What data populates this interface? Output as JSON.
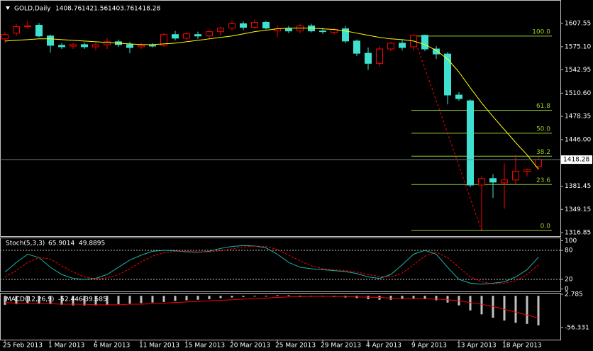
{
  "chart_data": [
    {
      "type": "candlestick",
      "title": "GOLD,Daily",
      "categories": [
        "25 Feb 2013",
        null,
        null,
        null,
        "1 Mar 2013",
        null,
        null,
        null,
        "6 Mar 2013",
        null,
        null,
        null,
        "11 Mar 2013",
        null,
        null,
        null,
        "15 Mar 2013",
        null,
        null,
        null,
        "20 Mar 2013",
        null,
        null,
        null,
        "25 Mar 2013",
        null,
        null,
        null,
        "29 Mar 2013",
        null,
        null,
        null,
        "4 Apr 2013",
        null,
        null,
        null,
        "9 Apr 2013",
        null,
        null,
        null,
        "13 Apr 2013",
        null,
        null,
        null,
        "18 Apr 2013",
        null,
        null,
        null
      ],
      "open": [
        1586,
        1594,
        1603,
        1605,
        1590,
        1577,
        1576,
        1578,
        1575,
        1578,
        1582,
        1578,
        1575,
        1577,
        1577,
        1592,
        1587,
        1592,
        1590,
        1596,
        1601,
        1607,
        1602,
        1609,
        1597,
        1600,
        1597,
        1604,
        1597,
        1595,
        1600,
        1583,
        1566,
        1552,
        1572,
        1580,
        1575,
        1591,
        1572,
        1565,
        1508,
        1500,
        1383,
        1392,
        1386,
        1390,
        1402,
        1408.76
      ],
      "high": [
        1596,
        1607,
        1611,
        1608,
        1592,
        1580,
        1580,
        1581,
        1581,
        1587,
        1585,
        1582,
        1580,
        1580,
        1594,
        1597,
        1595,
        1596,
        1598,
        1603,
        1611,
        1610,
        1613,
        1611,
        1605,
        1604,
        1607,
        1607,
        1601,
        1601,
        1604,
        1585,
        1574,
        1576,
        1582,
        1585,
        1593,
        1592,
        1576,
        1568,
        1512,
        1502,
        1395,
        1398,
        1413,
        1425,
        1406,
        1421.56
      ],
      "low": [
        1580,
        1590,
        1600,
        1588,
        1567,
        1572,
        1572,
        1572,
        1570,
        1572,
        1575,
        1566,
        1572,
        1574,
        1575,
        1584,
        1584,
        1586,
        1586,
        1590,
        1598,
        1598,
        1600,
        1599,
        1588,
        1594,
        1594,
        1595,
        1593,
        1592,
        1580,
        1562,
        1543,
        1548,
        1569,
        1570,
        1570,
        1569,
        1558,
        1495,
        1500,
        1380,
        1321,
        1365,
        1350,
        1385,
        1395,
        1403.76
      ],
      "close": [
        1592,
        1603,
        1604,
        1590,
        1577,
        1575,
        1578,
        1575,
        1578,
        1582,
        1578,
        1574,
        1577,
        1576,
        1592,
        1587,
        1593,
        1590,
        1596,
        1601,
        1607,
        1602,
        1609,
        1601,
        1600,
        1597,
        1604,
        1597,
        1596,
        1599,
        1583,
        1566,
        1552,
        1572,
        1580,
        1574,
        1591,
        1572,
        1565,
        1508,
        1503,
        1383,
        1392,
        1387,
        1390,
        1402,
        1404,
        1418.28
      ],
      "up_color": "#ff0000",
      "down_color": "#40e0d0",
      "series": [
        {
          "color": "#ffff00",
          "values": [
            1583,
            1584,
            1585,
            1586,
            1586,
            1585,
            1584,
            1583,
            1582,
            1581,
            1580,
            1579,
            1578,
            1578,
            1579,
            1580,
            1582,
            1584,
            1586,
            1588,
            1590,
            1593,
            1596,
            1598,
            1600,
            1601,
            1601,
            1601,
            1600,
            1599,
            1597,
            1594,
            1591,
            1588,
            1586,
            1585,
            1583,
            1578,
            1570,
            1558,
            1540,
            1518,
            1497,
            1478,
            1460,
            1442,
            1425,
            1405
          ]
        }
      ],
      "fibo": {
        "color": "#9acd32",
        "levels": [
          {
            "label": "100.0",
            "value": 1589.9
          },
          {
            "label": "61.8",
            "value": 1486.7
          },
          {
            "label": "50.0",
            "value": 1454.9
          },
          {
            "label": "38.2",
            "value": 1423.0
          },
          {
            "label": "23.6",
            "value": 1383.6
          },
          {
            "label": "0.0",
            "value": 1319.8
          }
        ]
      },
      "ylim": [
        1312,
        1639
      ],
      "yticks": [
        1607.55,
        {
          "value": 1575.1,
          "label": "1575.10"
        },
        1542.95,
        {
          "value": 1510.6,
          "label": "1510.60"
        },
        1478.35,
        {
          "value": 1446,
          "label": "1446.00"
        },
        1381.45,
        1349.15,
        1316.85
      ]
    },
    {
      "type": "line",
      "title": "Stoch(5,3,3)",
      "series": [
        {
          "color": "#20b2aa",
          "values": [
            35,
            55,
            72,
            65,
            45,
            30,
            22,
            20,
            22,
            30,
            45,
            60,
            70,
            78,
            80,
            79,
            77,
            76,
            78,
            84,
            88,
            90,
            89,
            85,
            72,
            55,
            45,
            42,
            40,
            38,
            36,
            32,
            25,
            22,
            30,
            50,
            72,
            80,
            72,
            45,
            20,
            12,
            10,
            12,
            15,
            25,
            40,
            65.9014
          ]
        },
        {
          "color": "#ff0000",
          "dashed": true,
          "values": [
            25,
            38,
            55,
            65,
            62,
            48,
            35,
            25,
            21,
            23,
            30,
            42,
            56,
            68,
            75,
            78,
            78,
            77,
            77,
            79,
            83,
            87,
            89,
            88,
            82,
            70,
            58,
            48,
            42,
            40,
            38,
            35,
            30,
            26,
            25,
            33,
            50,
            68,
            76,
            65,
            45,
            25,
            15,
            11,
            12,
            17,
            30,
            49.8895
          ]
        }
      ],
      "levels": [
        80,
        20
      ],
      "ylim": [
        -5,
        105
      ],
      "yticks": [
        100,
        80,
        20,
        0
      ]
    },
    {
      "type": "bar",
      "title": "MACD(12,26,9)",
      "color": "#c0c0c0",
      "values": [
        -16,
        -15,
        -14,
        -14,
        -15,
        -16,
        -17,
        -17,
        -17,
        -16,
        -15,
        -14,
        -13,
        -12,
        -11,
        -9,
        -8,
        -7,
        -6,
        -4,
        -3,
        -2,
        -1,
        0,
        1,
        1,
        0,
        -1,
        -1,
        -2,
        -3,
        -4,
        -6,
        -7,
        -7,
        -6,
        -5,
        -6,
        -8,
        -12,
        -17,
        -26,
        -33,
        -39,
        -44,
        -48,
        -50,
        -52.446
      ],
      "series": [
        {
          "color": "#ff0000",
          "values": [
            -12,
            -13,
            -13,
            -14,
            -14,
            -15,
            -15,
            -15,
            -16,
            -16,
            -16,
            -15,
            -15,
            -14,
            -13,
            -12,
            -11,
            -10,
            -9,
            -8,
            -7,
            -6,
            -5,
            -4,
            -3,
            -2,
            -1.5,
            -1,
            -1,
            -1,
            -1.5,
            -2,
            -2.5,
            -3,
            -4,
            -4.5,
            -5,
            -5.5,
            -6,
            -7,
            -9,
            -12,
            -15,
            -19,
            -24,
            -29,
            -34,
            -39.585
          ]
        }
      ],
      "ylim": [
        -78,
        4
      ],
      "yticks": [
        2.785,
        -56.331
      ]
    }
  ]
}
